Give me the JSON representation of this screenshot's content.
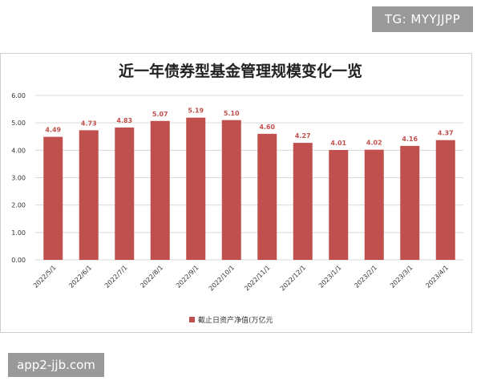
{
  "watermarks": {
    "top": "TG: MYYJJPP",
    "bottom": "app2-jjb.com"
  },
  "chart_data": {
    "type": "bar",
    "title": "近一年债券型基金管理规模变化一览",
    "xlabel": "",
    "ylabel": "",
    "categories": [
      "2022/5/1",
      "2022/6/1",
      "2022/7/1",
      "2022/8/1",
      "2022/9/1",
      "2022/10/1",
      "2022/11/1",
      "2022/12/1",
      "2023/1/1",
      "2023/2/1",
      "2023/3/1",
      "2023/4/1"
    ],
    "series": [
      {
        "name": "截止日资产净值(万亿元",
        "values": [
          4.49,
          4.73,
          4.83,
          5.07,
          5.19,
          5.1,
          4.6,
          4.27,
          4.01,
          4.02,
          4.16,
          4.37
        ],
        "labels": [
          "4.49",
          "4.73",
          "4.83",
          "5.07",
          "5.19",
          "5.10",
          "4.60",
          "4.27",
          "4.01",
          "4.02",
          "4.16",
          "4.37"
        ],
        "color": "#c0504d"
      }
    ],
    "yticks": [
      "0.00",
      "1.00",
      "2.00",
      "3.00",
      "4.00",
      "5.00",
      "6.00"
    ],
    "ylim": [
      0,
      6
    ],
    "grid": true,
    "legend": "bottom",
    "label_color": "#c0504d",
    "grid_color": "#d9d9d9"
  }
}
